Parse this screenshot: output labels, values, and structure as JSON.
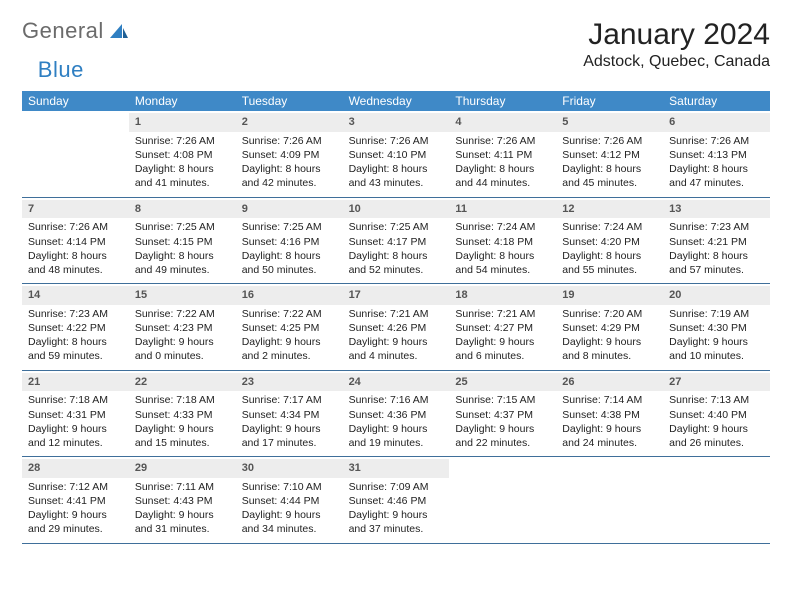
{
  "logo": {
    "word1": "General",
    "word2": "Blue"
  },
  "header": {
    "title": "January 2024",
    "location": "Adstock, Quebec, Canada"
  },
  "colors": {
    "header_bg": "#3f89c7",
    "header_text": "#ffffff",
    "daynum_bg": "#ededed",
    "week_border": "#3f6f9a",
    "logo_gray": "#6b6b6b",
    "logo_blue": "#2f7fc2"
  },
  "day_names": [
    "Sunday",
    "Monday",
    "Tuesday",
    "Wednesday",
    "Thursday",
    "Friday",
    "Saturday"
  ],
  "weeks": [
    [
      null,
      {
        "n": "1",
        "sr": "Sunrise: 7:26 AM",
        "ss": "Sunset: 4:08 PM",
        "d1": "Daylight: 8 hours",
        "d2": "and 41 minutes."
      },
      {
        "n": "2",
        "sr": "Sunrise: 7:26 AM",
        "ss": "Sunset: 4:09 PM",
        "d1": "Daylight: 8 hours",
        "d2": "and 42 minutes."
      },
      {
        "n": "3",
        "sr": "Sunrise: 7:26 AM",
        "ss": "Sunset: 4:10 PM",
        "d1": "Daylight: 8 hours",
        "d2": "and 43 minutes."
      },
      {
        "n": "4",
        "sr": "Sunrise: 7:26 AM",
        "ss": "Sunset: 4:11 PM",
        "d1": "Daylight: 8 hours",
        "d2": "and 44 minutes."
      },
      {
        "n": "5",
        "sr": "Sunrise: 7:26 AM",
        "ss": "Sunset: 4:12 PM",
        "d1": "Daylight: 8 hours",
        "d2": "and 45 minutes."
      },
      {
        "n": "6",
        "sr": "Sunrise: 7:26 AM",
        "ss": "Sunset: 4:13 PM",
        "d1": "Daylight: 8 hours",
        "d2": "and 47 minutes."
      }
    ],
    [
      {
        "n": "7",
        "sr": "Sunrise: 7:26 AM",
        "ss": "Sunset: 4:14 PM",
        "d1": "Daylight: 8 hours",
        "d2": "and 48 minutes."
      },
      {
        "n": "8",
        "sr": "Sunrise: 7:25 AM",
        "ss": "Sunset: 4:15 PM",
        "d1": "Daylight: 8 hours",
        "d2": "and 49 minutes."
      },
      {
        "n": "9",
        "sr": "Sunrise: 7:25 AM",
        "ss": "Sunset: 4:16 PM",
        "d1": "Daylight: 8 hours",
        "d2": "and 50 minutes."
      },
      {
        "n": "10",
        "sr": "Sunrise: 7:25 AM",
        "ss": "Sunset: 4:17 PM",
        "d1": "Daylight: 8 hours",
        "d2": "and 52 minutes."
      },
      {
        "n": "11",
        "sr": "Sunrise: 7:24 AM",
        "ss": "Sunset: 4:18 PM",
        "d1": "Daylight: 8 hours",
        "d2": "and 54 minutes."
      },
      {
        "n": "12",
        "sr": "Sunrise: 7:24 AM",
        "ss": "Sunset: 4:20 PM",
        "d1": "Daylight: 8 hours",
        "d2": "and 55 minutes."
      },
      {
        "n": "13",
        "sr": "Sunrise: 7:23 AM",
        "ss": "Sunset: 4:21 PM",
        "d1": "Daylight: 8 hours",
        "d2": "and 57 minutes."
      }
    ],
    [
      {
        "n": "14",
        "sr": "Sunrise: 7:23 AM",
        "ss": "Sunset: 4:22 PM",
        "d1": "Daylight: 8 hours",
        "d2": "and 59 minutes."
      },
      {
        "n": "15",
        "sr": "Sunrise: 7:22 AM",
        "ss": "Sunset: 4:23 PM",
        "d1": "Daylight: 9 hours",
        "d2": "and 0 minutes."
      },
      {
        "n": "16",
        "sr": "Sunrise: 7:22 AM",
        "ss": "Sunset: 4:25 PM",
        "d1": "Daylight: 9 hours",
        "d2": "and 2 minutes."
      },
      {
        "n": "17",
        "sr": "Sunrise: 7:21 AM",
        "ss": "Sunset: 4:26 PM",
        "d1": "Daylight: 9 hours",
        "d2": "and 4 minutes."
      },
      {
        "n": "18",
        "sr": "Sunrise: 7:21 AM",
        "ss": "Sunset: 4:27 PM",
        "d1": "Daylight: 9 hours",
        "d2": "and 6 minutes."
      },
      {
        "n": "19",
        "sr": "Sunrise: 7:20 AM",
        "ss": "Sunset: 4:29 PM",
        "d1": "Daylight: 9 hours",
        "d2": "and 8 minutes."
      },
      {
        "n": "20",
        "sr": "Sunrise: 7:19 AM",
        "ss": "Sunset: 4:30 PM",
        "d1": "Daylight: 9 hours",
        "d2": "and 10 minutes."
      }
    ],
    [
      {
        "n": "21",
        "sr": "Sunrise: 7:18 AM",
        "ss": "Sunset: 4:31 PM",
        "d1": "Daylight: 9 hours",
        "d2": "and 12 minutes."
      },
      {
        "n": "22",
        "sr": "Sunrise: 7:18 AM",
        "ss": "Sunset: 4:33 PM",
        "d1": "Daylight: 9 hours",
        "d2": "and 15 minutes."
      },
      {
        "n": "23",
        "sr": "Sunrise: 7:17 AM",
        "ss": "Sunset: 4:34 PM",
        "d1": "Daylight: 9 hours",
        "d2": "and 17 minutes."
      },
      {
        "n": "24",
        "sr": "Sunrise: 7:16 AM",
        "ss": "Sunset: 4:36 PM",
        "d1": "Daylight: 9 hours",
        "d2": "and 19 minutes."
      },
      {
        "n": "25",
        "sr": "Sunrise: 7:15 AM",
        "ss": "Sunset: 4:37 PM",
        "d1": "Daylight: 9 hours",
        "d2": "and 22 minutes."
      },
      {
        "n": "26",
        "sr": "Sunrise: 7:14 AM",
        "ss": "Sunset: 4:38 PM",
        "d1": "Daylight: 9 hours",
        "d2": "and 24 minutes."
      },
      {
        "n": "27",
        "sr": "Sunrise: 7:13 AM",
        "ss": "Sunset: 4:40 PM",
        "d1": "Daylight: 9 hours",
        "d2": "and 26 minutes."
      }
    ],
    [
      {
        "n": "28",
        "sr": "Sunrise: 7:12 AM",
        "ss": "Sunset: 4:41 PM",
        "d1": "Daylight: 9 hours",
        "d2": "and 29 minutes."
      },
      {
        "n": "29",
        "sr": "Sunrise: 7:11 AM",
        "ss": "Sunset: 4:43 PM",
        "d1": "Daylight: 9 hours",
        "d2": "and 31 minutes."
      },
      {
        "n": "30",
        "sr": "Sunrise: 7:10 AM",
        "ss": "Sunset: 4:44 PM",
        "d1": "Daylight: 9 hours",
        "d2": "and 34 minutes."
      },
      {
        "n": "31",
        "sr": "Sunrise: 7:09 AM",
        "ss": "Sunset: 4:46 PM",
        "d1": "Daylight: 9 hours",
        "d2": "and 37 minutes."
      },
      null,
      null,
      null
    ]
  ]
}
